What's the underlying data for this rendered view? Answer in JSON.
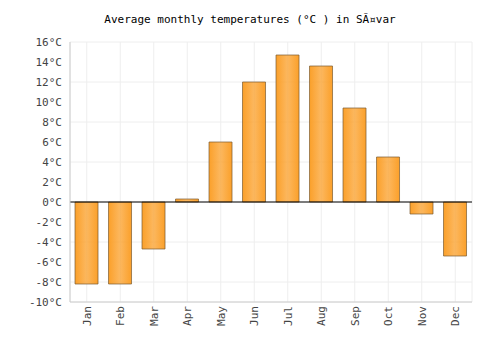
{
  "chart_data": {
    "type": "bar",
    "title": "Average monthly temperatures (°C ) in SÃ¤var",
    "categories": [
      "Jan",
      "Feb",
      "Mar",
      "Apr",
      "May",
      "Jun",
      "Jul",
      "Aug",
      "Sep",
      "Oct",
      "Nov",
      "Dec"
    ],
    "values": [
      -8.2,
      -8.2,
      -4.7,
      0.3,
      6.0,
      12.0,
      14.7,
      13.6,
      9.4,
      4.5,
      -1.2,
      -5.4
    ],
    "color": "#fba02a",
    "ylim": [
      -10,
      16
    ],
    "yticks": [
      {
        "value": -10,
        "label": "-10°C"
      },
      {
        "value": -8,
        "label": "-8°C"
      },
      {
        "value": -6,
        "label": "-6°C"
      },
      {
        "value": -4,
        "label": "-4°C"
      },
      {
        "value": -2,
        "label": "-2°C"
      },
      {
        "value": 0,
        "label": "0°C"
      },
      {
        "value": 2,
        "label": "2°C"
      },
      {
        "value": 4,
        "label": "4°C"
      },
      {
        "value": 6,
        "label": "6°C"
      },
      {
        "value": 8,
        "label": "8°C"
      },
      {
        "value": 10,
        "label": "10°C"
      },
      {
        "value": 12,
        "label": "12°C"
      },
      {
        "value": 14,
        "label": "14°C"
      },
      {
        "value": 16,
        "label": "16°C"
      }
    ],
    "grid": true
  }
}
